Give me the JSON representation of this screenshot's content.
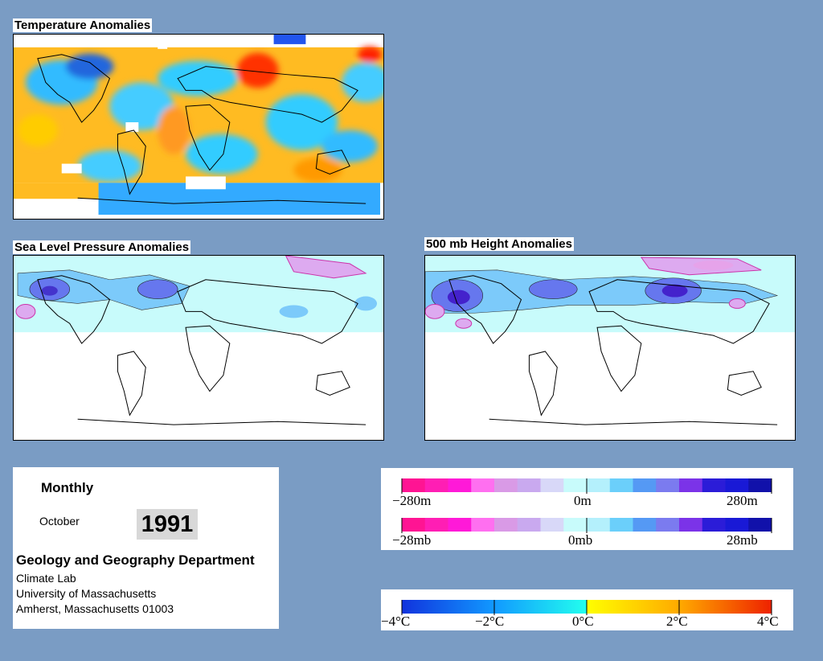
{
  "panels": {
    "temperature": {
      "title": "Temperature Anomalies"
    },
    "slp": {
      "title": "Sea Level Pressure Anomalies"
    },
    "height": {
      "title": "500 mb Height Anomalies"
    }
  },
  "info": {
    "period": "Monthly",
    "month": "October",
    "year": "1991",
    "department": "Geology and Geography Department",
    "lab": "Climate Lab",
    "university": "University of Massachusetts",
    "address": "Amherst, Massachusetts 01003"
  },
  "legend_height": {
    "min": "−280m",
    "mid": "0m",
    "max": "280m",
    "colors": [
      "#ff1493",
      "#ff1eb4",
      "#ff19d8",
      "#ff6ff0",
      "#d99ae6",
      "#c9a9ef",
      "#d8d8f8",
      "#c8fbfb",
      "#b4f0fc",
      "#6bcffa",
      "#5599f4",
      "#7b7bef",
      "#7b33e8",
      "#2b1cd8",
      "#1919d6",
      "#1111aa"
    ]
  },
  "legend_pressure": {
    "min": "−28mb",
    "mid": "0mb",
    "max": "28mb",
    "colors": [
      "#ff1493",
      "#ff1eb4",
      "#ff19d8",
      "#ff6ff0",
      "#d99ae6",
      "#c9a9ef",
      "#d8d8f8",
      "#c8fbfb",
      "#b4f0fc",
      "#6bcffa",
      "#5599f4",
      "#7b7bef",
      "#7b33e8",
      "#2b1cd8",
      "#1919d6",
      "#1111aa"
    ]
  },
  "legend_temperature": {
    "labels": [
      "−4°C",
      "−2°C",
      "0°C",
      "2°C",
      "4°C"
    ]
  }
}
